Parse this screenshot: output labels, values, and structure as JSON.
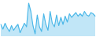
{
  "chart_data": {
    "type": "area",
    "values": [
      -2.0,
      -4.0,
      -1.5,
      -3.5,
      -5.0,
      -2.5,
      -4.5,
      -3.0,
      -2.0,
      -5.5,
      -3.5,
      -1.5,
      -3.0,
      7.0,
      3.5,
      -2.5,
      -6.0,
      2.0,
      -3.0,
      -5.0,
      2.5,
      -2.0,
      -4.5,
      3.5,
      -1.5,
      -3.0,
      2.0,
      -2.5,
      1.0,
      -2.0,
      1.5,
      -1.0,
      2.5,
      1.0,
      2.0,
      3.0,
      1.5,
      2.5,
      1.5,
      3.5,
      2.0,
      1.5,
      3.0,
      2.5,
      1.5
    ],
    "color": "#4db8e8",
    "ylim": [
      -7.0,
      8.0
    ],
    "grid": false,
    "tick_labels": false
  }
}
